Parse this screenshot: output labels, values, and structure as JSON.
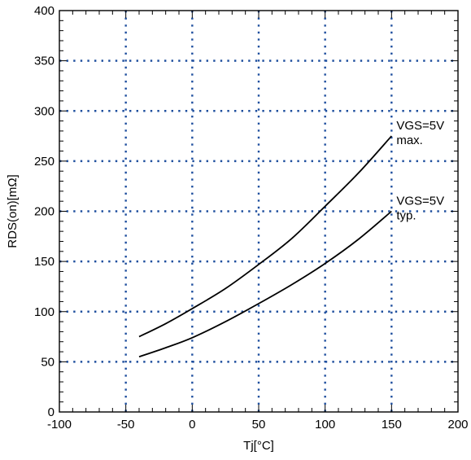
{
  "chart_data": {
    "type": "line",
    "title": "",
    "xlabel": "Tj[°C]",
    "ylabel": "RDS(on)[mΩ]",
    "xlim": [
      -100,
      200
    ],
    "ylim": [
      0,
      400
    ],
    "xticks": [
      -100,
      -50,
      0,
      50,
      100,
      150,
      200
    ],
    "yticks": [
      0,
      50,
      100,
      150,
      200,
      250,
      300,
      350,
      400
    ],
    "grid": true,
    "series": [
      {
        "name": "VGS=5V max.",
        "label_line1": "VGS=5V",
        "label_line2": "max.",
        "x": [
          -40,
          -20,
          0,
          25,
          50,
          75,
          100,
          125,
          150
        ],
        "y": [
          75,
          88,
          103,
          123,
          147,
          173,
          205,
          238,
          275
        ]
      },
      {
        "name": "VGS=5V typ.",
        "label_line1": "VGS=5V",
        "label_line2": "typ.",
        "x": [
          -40,
          -20,
          0,
          25,
          50,
          75,
          100,
          125,
          150
        ],
        "y": [
          55,
          64,
          74,
          90,
          108,
          127,
          148,
          172,
          200
        ]
      }
    ]
  }
}
